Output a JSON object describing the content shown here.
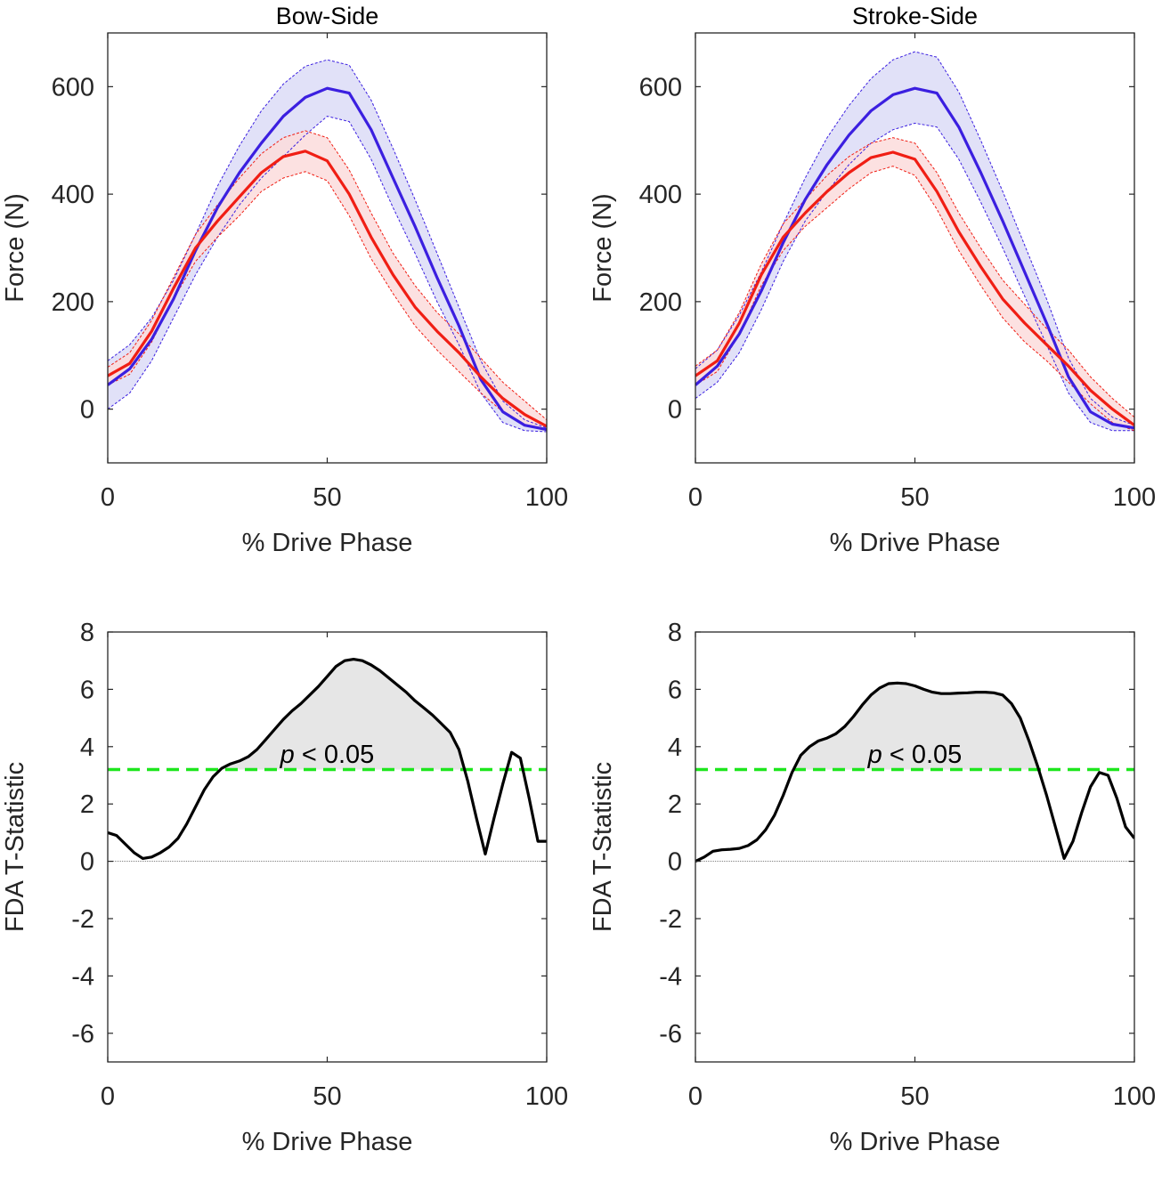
{
  "chart_data": [
    {
      "type": "line",
      "title": "Bow-Side",
      "xlabel": "% Drive Phase",
      "ylabel": "Force (N)",
      "xlim": [
        0,
        100
      ],
      "ylim": [
        -100,
        700
      ],
      "xticks": [
        0,
        50,
        100
      ],
      "yticks": [
        0,
        200,
        400,
        600
      ],
      "grid": false,
      "legend": "none",
      "series": [
        {
          "color": "#3b1fe0",
          "band_color": "#dcdcf7",
          "x": [
            0,
            5,
            10,
            15,
            20,
            25,
            30,
            35,
            40,
            45,
            50,
            55,
            60,
            65,
            70,
            75,
            80,
            85,
            90,
            95,
            100
          ],
          "mean": [
            45,
            75,
            130,
            205,
            295,
            375,
            440,
            495,
            545,
            580,
            597,
            588,
            520,
            430,
            340,
            245,
            155,
            55,
            -5,
            -30,
            -38
          ],
          "upper": [
            90,
            120,
            170,
            240,
            325,
            415,
            490,
            555,
            605,
            638,
            650,
            640,
            575,
            485,
            390,
            290,
            190,
            90,
            15,
            -20,
            -35
          ],
          "lower": [
            0,
            30,
            90,
            170,
            250,
            320,
            380,
            430,
            470,
            510,
            545,
            535,
            465,
            375,
            290,
            200,
            120,
            30,
            -25,
            -40,
            -42
          ]
        },
        {
          "color": "#f01e14",
          "band_color": "#fbdcdc",
          "x": [
            0,
            5,
            10,
            15,
            20,
            25,
            30,
            35,
            40,
            45,
            50,
            55,
            60,
            65,
            70,
            75,
            80,
            85,
            90,
            95,
            100
          ],
          "mean": [
            62,
            85,
            145,
            225,
            300,
            350,
            395,
            440,
            470,
            480,
            462,
            400,
            320,
            250,
            190,
            145,
            105,
            60,
            20,
            -10,
            -32
          ],
          "upper": [
            78,
            105,
            165,
            245,
            325,
            380,
            430,
            475,
            505,
            518,
            505,
            445,
            365,
            290,
            230,
            180,
            140,
            95,
            50,
            15,
            -20
          ],
          "lower": [
            45,
            65,
            125,
            205,
            275,
            320,
            360,
            405,
            430,
            442,
            425,
            360,
            280,
            215,
            155,
            110,
            70,
            30,
            -5,
            -30,
            -40
          ]
        }
      ]
    },
    {
      "type": "line",
      "title": "Stroke-Side",
      "xlabel": "% Drive Phase",
      "ylabel": "Force (N)",
      "xlim": [
        0,
        100
      ],
      "ylim": [
        -100,
        700
      ],
      "xticks": [
        0,
        50,
        100
      ],
      "yticks": [
        0,
        200,
        400,
        600
      ],
      "grid": false,
      "legend": "none",
      "series": [
        {
          "color": "#3b1fe0",
          "band_color": "#dcdcf7",
          "x": [
            0,
            5,
            10,
            15,
            20,
            25,
            30,
            35,
            40,
            45,
            50,
            55,
            60,
            65,
            70,
            75,
            80,
            85,
            90,
            95,
            100
          ],
          "mean": [
            45,
            80,
            140,
            220,
            310,
            390,
            455,
            510,
            555,
            585,
            597,
            588,
            525,
            440,
            350,
            255,
            160,
            60,
            -5,
            -28,
            -35
          ],
          "upper": [
            75,
            110,
            175,
            255,
            345,
            430,
            505,
            565,
            615,
            650,
            665,
            655,
            590,
            500,
            405,
            305,
            205,
            95,
            20,
            -15,
            -30
          ],
          "lower": [
            20,
            50,
            105,
            185,
            275,
            350,
            405,
            455,
            495,
            520,
            532,
            525,
            465,
            385,
            300,
            210,
            120,
            30,
            -25,
            -40,
            -40
          ]
        },
        {
          "color": "#f01e14",
          "band_color": "#fbdcdc",
          "x": [
            0,
            5,
            10,
            15,
            20,
            25,
            30,
            35,
            40,
            45,
            50,
            55,
            60,
            65,
            70,
            75,
            80,
            85,
            90,
            95,
            100
          ],
          "mean": [
            62,
            90,
            160,
            250,
            320,
            365,
            405,
            440,
            468,
            478,
            465,
            405,
            330,
            265,
            205,
            160,
            120,
            80,
            35,
            0,
            -30
          ],
          "upper": [
            80,
            110,
            180,
            270,
            345,
            390,
            435,
            470,
            495,
            505,
            495,
            440,
            365,
            300,
            240,
            195,
            150,
            110,
            60,
            20,
            -15
          ],
          "lower": [
            45,
            70,
            140,
            230,
            295,
            340,
            375,
            410,
            440,
            452,
            435,
            372,
            295,
            230,
            170,
            125,
            90,
            50,
            10,
            -25,
            -40
          ]
        }
      ]
    },
    {
      "type": "line",
      "title": "",
      "xlabel": "% Drive Phase",
      "ylabel": "FDA T-Statistic",
      "xlim": [
        0,
        100
      ],
      "ylim": [
        -7,
        8
      ],
      "xticks": [
        0,
        50,
        100
      ],
      "yticks": [
        -6,
        -4,
        -2,
        0,
        2,
        4,
        6,
        8
      ],
      "grid": false,
      "legend": "none",
      "threshold": 3.2,
      "threshold_color": "#1ee61e",
      "significance_fill": "#e6e6e6",
      "annotation": {
        "italic": "p",
        "text": " < 0.05",
        "x": 50,
        "y": 3.75
      },
      "series": [
        {
          "color": "#000000",
          "x": [
            0,
            2,
            4,
            6,
            8,
            10,
            12,
            14,
            16,
            18,
            20,
            22,
            24,
            26,
            28,
            30,
            32,
            34,
            36,
            38,
            40,
            42,
            44,
            46,
            48,
            50,
            52,
            54,
            56,
            58,
            60,
            62,
            64,
            66,
            68,
            70,
            72,
            74,
            76,
            78,
            80,
            82,
            84,
            86,
            88,
            90,
            92,
            94,
            96,
            98,
            100
          ],
          "y": [
            1.0,
            0.9,
            0.6,
            0.3,
            0.1,
            0.15,
            0.3,
            0.5,
            0.8,
            1.3,
            1.9,
            2.5,
            2.95,
            3.25,
            3.4,
            3.5,
            3.65,
            3.9,
            4.25,
            4.6,
            4.95,
            5.25,
            5.5,
            5.8,
            6.1,
            6.45,
            6.8,
            7.0,
            7.05,
            7.0,
            6.85,
            6.65,
            6.4,
            6.15,
            5.9,
            5.6,
            5.35,
            5.1,
            4.8,
            4.5,
            3.9,
            2.8,
            1.5,
            0.25,
            1.5,
            2.7,
            3.8,
            3.6,
            2.2,
            0.7,
            0.7
          ]
        }
      ]
    },
    {
      "type": "line",
      "title": "",
      "xlabel": "% Drive Phase",
      "ylabel": "FDA T-Statistic",
      "xlim": [
        0,
        100
      ],
      "ylim": [
        -7,
        8
      ],
      "xticks": [
        0,
        50,
        100
      ],
      "yticks": [
        -6,
        -4,
        -2,
        0,
        2,
        4,
        6,
        8
      ],
      "grid": false,
      "legend": "none",
      "threshold": 3.2,
      "threshold_color": "#1ee61e",
      "significance_fill": "#e6e6e6",
      "annotation": {
        "italic": "p",
        "text": " < 0.05",
        "x": 50,
        "y": 3.75
      },
      "series": [
        {
          "color": "#000000",
          "x": [
            0,
            2,
            4,
            6,
            8,
            10,
            12,
            14,
            16,
            18,
            20,
            22,
            24,
            26,
            28,
            30,
            32,
            34,
            36,
            38,
            40,
            42,
            44,
            46,
            48,
            50,
            52,
            54,
            56,
            58,
            60,
            62,
            64,
            66,
            68,
            70,
            72,
            74,
            76,
            78,
            80,
            82,
            84,
            86,
            88,
            90,
            92,
            94,
            96,
            98,
            100
          ],
          "y": [
            0.0,
            0.15,
            0.35,
            0.4,
            0.42,
            0.45,
            0.55,
            0.75,
            1.1,
            1.6,
            2.3,
            3.1,
            3.7,
            4.0,
            4.2,
            4.3,
            4.45,
            4.7,
            5.05,
            5.45,
            5.8,
            6.05,
            6.2,
            6.22,
            6.2,
            6.12,
            6.0,
            5.9,
            5.85,
            5.85,
            5.87,
            5.88,
            5.9,
            5.9,
            5.88,
            5.8,
            5.5,
            5.0,
            4.2,
            3.3,
            2.3,
            1.2,
            0.1,
            0.7,
            1.7,
            2.6,
            3.1,
            3.0,
            2.2,
            1.2,
            0.8
          ]
        }
      ]
    }
  ]
}
